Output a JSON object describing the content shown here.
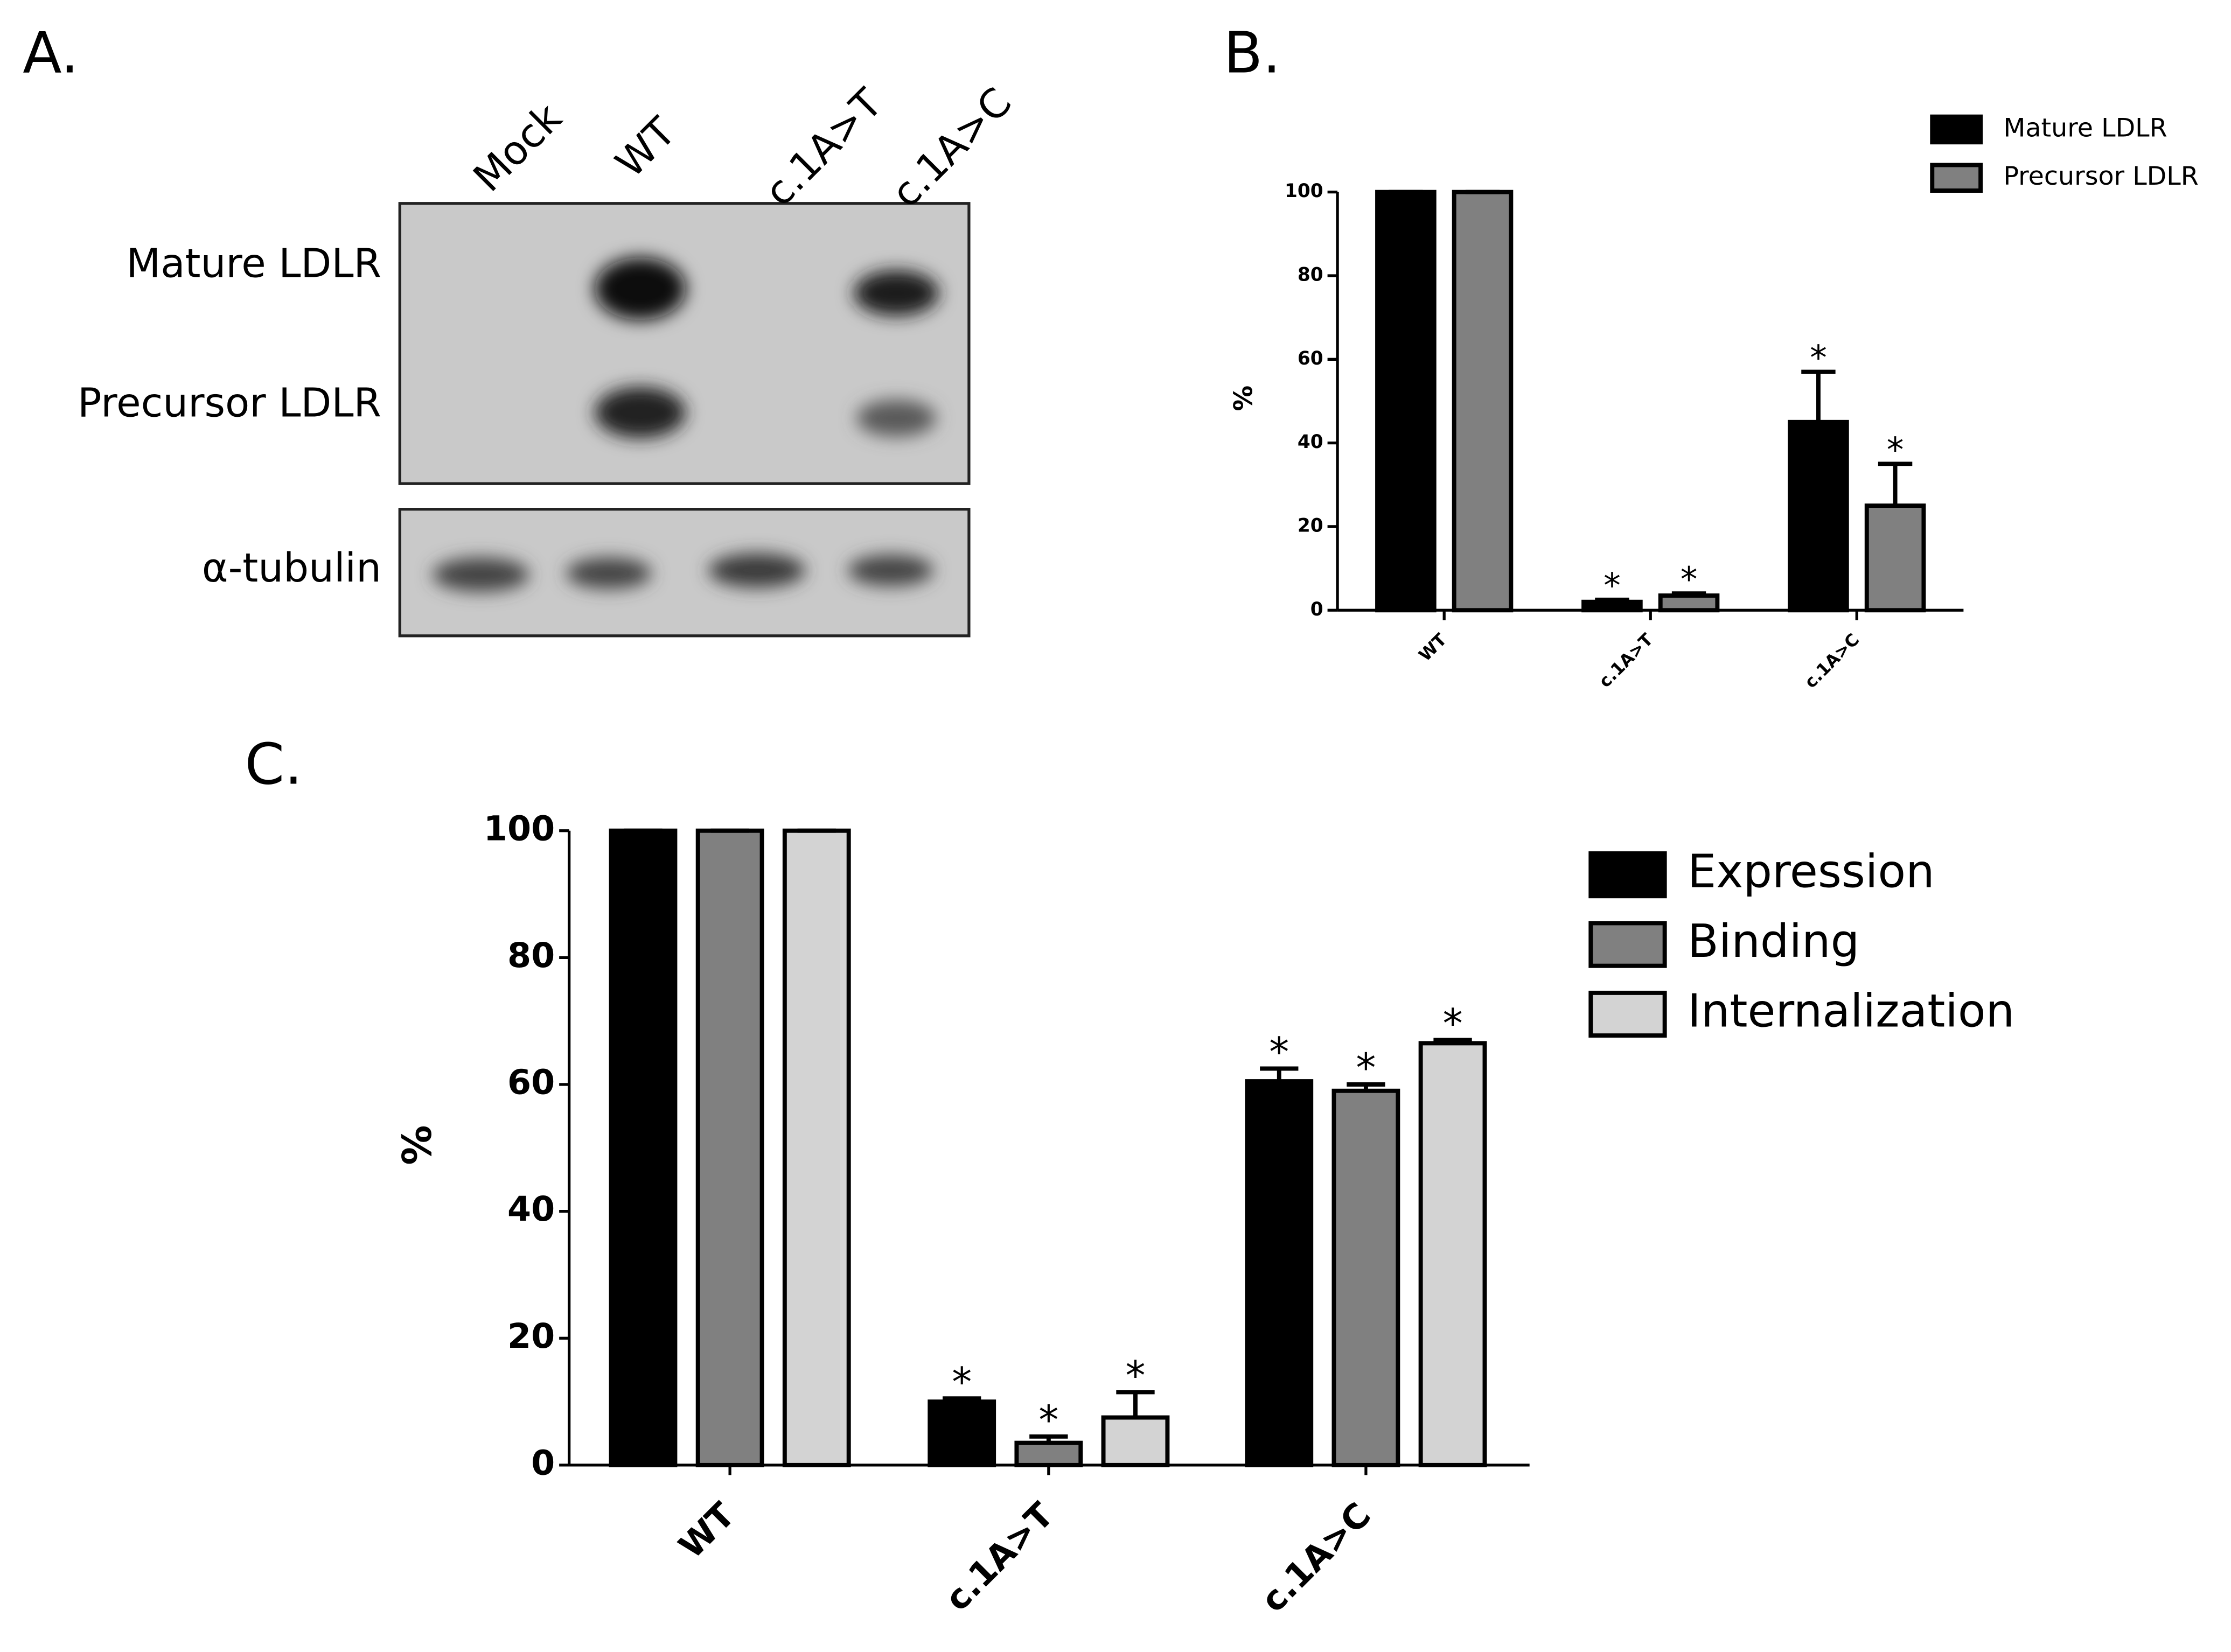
{
  "blot": {
    "panel_label": "A.",
    "lanes": [
      "Mock",
      "WT",
      "c.1A>T",
      "c.1A>C"
    ],
    "rows": [
      "Mature LDLR",
      "Precursor LDLR",
      "α-tubulin"
    ]
  },
  "chart_data": [
    {
      "type": "bar",
      "panel_label": "B.",
      "ylabel": "%",
      "categories": [
        "WT",
        "c.1A>T",
        "c.1A>C"
      ],
      "series": [
        {
          "name": "Mature LDLR",
          "color": "#000000",
          "values": [
            100,
            2,
            45
          ],
          "errors": [
            0,
            0.5,
            12
          ],
          "markers": [
            null,
            "*",
            "*"
          ]
        },
        {
          "name": "Precursor LDLR",
          "color": "#808080",
          "values": [
            100,
            3.5,
            25
          ],
          "errors": [
            0,
            0.5,
            10
          ],
          "markers": [
            null,
            "*",
            "*"
          ]
        }
      ],
      "ylim": [
        0,
        100
      ],
      "yticks": [
        0,
        20,
        40,
        60,
        80,
        100
      ],
      "legend": "upper right"
    },
    {
      "type": "bar",
      "panel_label": "C.",
      "ylabel": "%",
      "categories": [
        "WT",
        "c.1A>T",
        "c.1A>C"
      ],
      "series": [
        {
          "name": "Expression",
          "color": "#000000",
          "values": [
            100,
            10,
            60.5
          ],
          "errors": [
            0,
            0.5,
            2
          ],
          "markers": [
            null,
            "*",
            "*"
          ]
        },
        {
          "name": "Binding",
          "color": "#808080",
          "values": [
            100,
            3.5,
            59
          ],
          "errors": [
            0,
            1,
            1
          ],
          "markers": [
            null,
            "*",
            "*"
          ]
        },
        {
          "name": "Internalization",
          "color": "#d3d3d3",
          "values": [
            100,
            7.5,
            66.5
          ],
          "errors": [
            0,
            4,
            0.5
          ],
          "markers": [
            null,
            "*",
            "*"
          ]
        }
      ],
      "ylim": [
        0,
        100
      ],
      "yticks": [
        0,
        20,
        40,
        60,
        80,
        100
      ],
      "legend": "upper right"
    }
  ]
}
